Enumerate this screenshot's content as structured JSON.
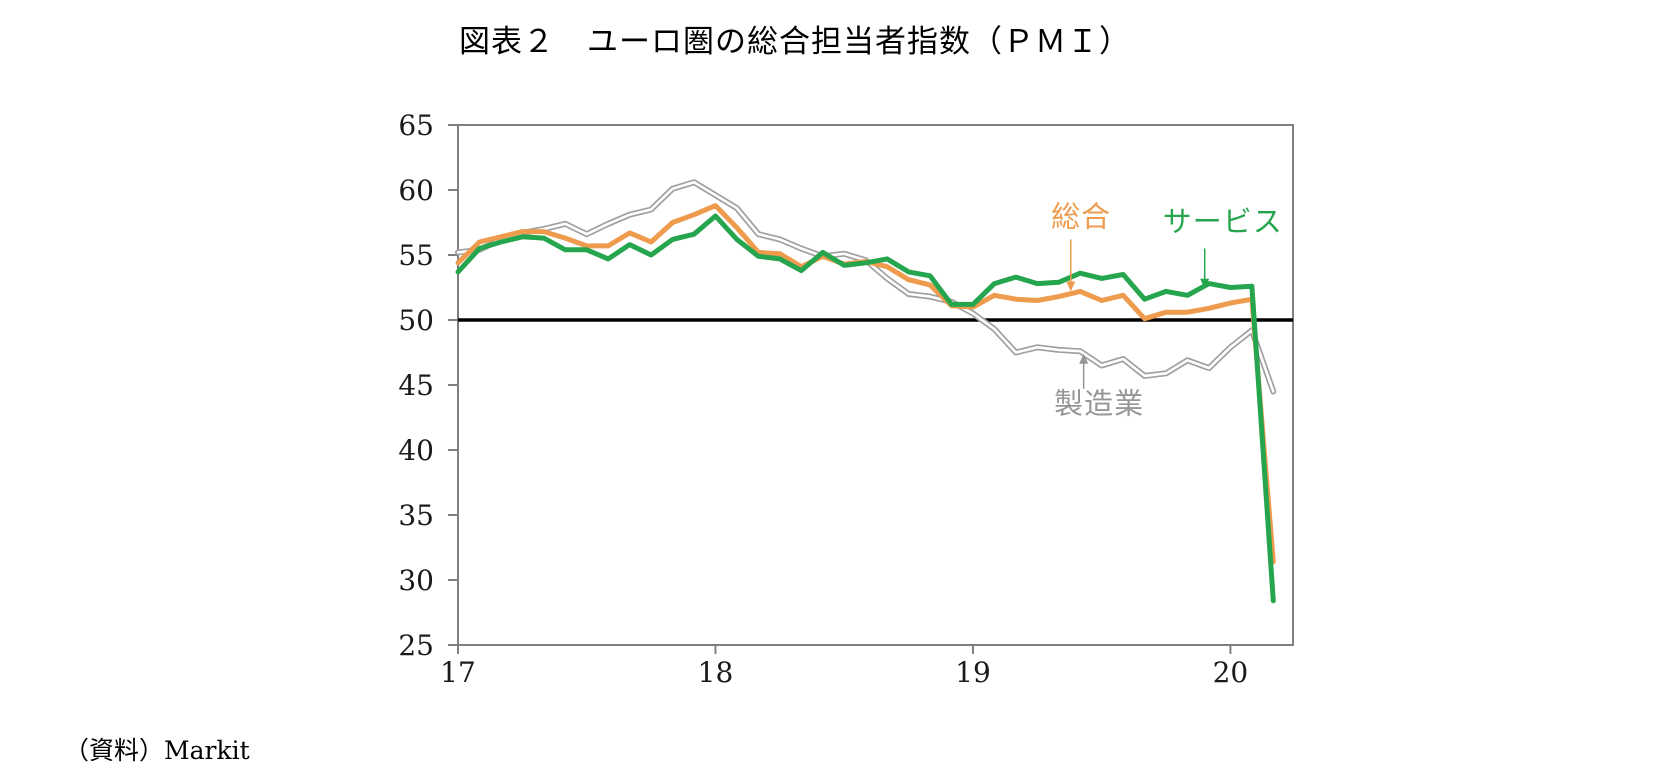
{
  "source_note": "（資料）Markit",
  "chart_data": {
    "type": "line",
    "title": "図表２　ユーロ圏の総合担当者指数（ＰＭＩ）",
    "x_start_year": 2017,
    "x_months_per_point": 1,
    "xlim": [
      2017,
      2020.243
    ],
    "ylim": [
      25,
      65
    ],
    "grid": false,
    "reference_line": {
      "value": 50,
      "color": "#000000",
      "width": 3.5
    },
    "axis_color": "#7f7f7f",
    "xticks": [
      {
        "v": 2017,
        "label": "17"
      },
      {
        "v": 2018,
        "label": "18"
      },
      {
        "v": 2019,
        "label": "19"
      },
      {
        "v": 2020,
        "label": "20"
      }
    ],
    "yticks": [
      {
        "v": 65,
        "label": "65"
      },
      {
        "v": 60,
        "label": "60"
      },
      {
        "v": 55,
        "label": "55"
      },
      {
        "v": 50,
        "label": "50"
      },
      {
        "v": 45,
        "label": "45"
      },
      {
        "v": 40,
        "label": "40"
      },
      {
        "v": 35,
        "label": "35"
      },
      {
        "v": 30,
        "label": "30"
      },
      {
        "v": 25,
        "label": "25"
      }
    ],
    "series": [
      {
        "name": "製造業",
        "key": "manufacturing",
        "color": "#a0a0a0",
        "style": "double",
        "width": 6,
        "inner_width": 2.6,
        "values": [
          55.2,
          55.4,
          56.2,
          56.7,
          57.0,
          57.4,
          56.6,
          57.4,
          58.1,
          58.5,
          60.1,
          60.6,
          59.6,
          58.6,
          56.6,
          56.2,
          55.5,
          54.9,
          55.1,
          54.6,
          53.2,
          52.0,
          51.8,
          51.4,
          50.5,
          49.3,
          47.5,
          47.9,
          47.7,
          47.6,
          46.5,
          47.0,
          45.7,
          45.9,
          46.9,
          46.3,
          47.9,
          49.2,
          44.5
        ]
      },
      {
        "name": "総合",
        "key": "composite",
        "color": "#ee9b4e",
        "style": "solid",
        "width": 5,
        "values": [
          54.4,
          56.0,
          56.4,
          56.8,
          56.8,
          56.3,
          55.7,
          55.7,
          56.7,
          56.0,
          57.5,
          58.1,
          58.8,
          57.1,
          55.2,
          55.1,
          54.1,
          54.9,
          54.3,
          54.5,
          54.1,
          53.1,
          52.7,
          51.1,
          51.0,
          51.9,
          51.6,
          51.5,
          51.8,
          52.2,
          51.5,
          51.9,
          50.1,
          50.6,
          50.6,
          50.9,
          51.3,
          51.6,
          31.4
        ]
      },
      {
        "name": "サービス",
        "key": "services",
        "color": "#25a54d",
        "style": "solid",
        "width": 5,
        "values": [
          53.7,
          55.5,
          56.0,
          56.4,
          56.3,
          55.4,
          55.4,
          54.7,
          55.8,
          55.0,
          56.2,
          56.6,
          58.0,
          56.2,
          54.9,
          54.7,
          53.8,
          55.2,
          54.2,
          54.4,
          54.7,
          53.7,
          53.4,
          51.2,
          51.2,
          52.8,
          53.3,
          52.8,
          52.9,
          53.6,
          53.2,
          53.5,
          51.6,
          52.2,
          51.9,
          52.8,
          52.5,
          52.6,
          28.4
        ]
      }
    ],
    "annotations": [
      {
        "text": "総合",
        "key": "composite",
        "color": "#ee9b4e",
        "tx": 2019.42,
        "ty": 57.2,
        "ax": 2019.38,
        "ay_from": 56.2,
        "ay_to": 52.2
      },
      {
        "text": "サービス",
        "key": "services",
        "color": "#25a54d",
        "tx": 2019.97,
        "ty": 56.8,
        "ax": 2019.9,
        "ay_from": 55.5,
        "ay_to": 52.4
      },
      {
        "text": "製造業",
        "key": "manufacturing",
        "color": "#969696",
        "tx": 2019.49,
        "ty": 42.8,
        "ax": 2019.43,
        "ay_from": 44.7,
        "ay_to": 47.4
      }
    ]
  }
}
